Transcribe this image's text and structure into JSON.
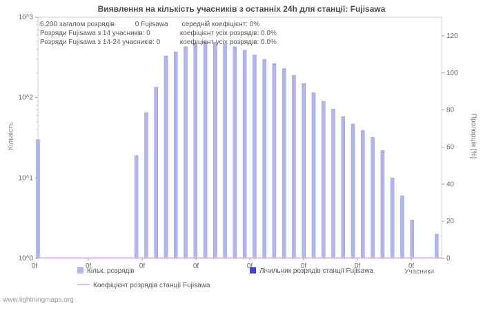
{
  "title": "Виявлення на кількість учасників з останніх 24h для станції: Fujisawa",
  "stats": {
    "line1": [
      "6,200 загалом розрядів",
      "0 Fujisawa",
      "середній коефіцієнт: 0%"
    ],
    "line2": [
      "Розряди Fujisawa з 14 учасників: 0",
      "коефіцієнт усіх розрядів: 0.0%"
    ],
    "line3": [
      "Розряди Fujisawa з 14-24 учасників: 0",
      "коефіцієнт усіх розрядів: 0.0%"
    ]
  },
  "axes": {
    "xlabel": "Учасники",
    "ylabel_left": "Кількість",
    "ylabel_right": "Пропорція [%]"
  },
  "legend": {
    "items": [
      {
        "label": "Кільк. розрядів",
        "color": "#b3b3f0",
        "swatch": "square"
      },
      {
        "label": "Лічильник розрядів станції Fujisawa",
        "color": "#4444cc",
        "swatch": "square"
      },
      {
        "label": "Коефіцієнт розрядів станції Fujisawa",
        "color": "#f0b4ee",
        "swatch": "line"
      }
    ]
  },
  "watermark": "www.lightningmaps.org",
  "chart_data": {
    "type": "bar",
    "title": "Виявлення на кількість учасників з останніх 24h для станції: Fujisawa",
    "xlabel": "Учасники",
    "ylabel": "Кількість",
    "ylabel_right": "Пропорція [%]",
    "y_scale": "log",
    "ylim": [
      1,
      1000
    ],
    "ylim_right": [
      0,
      130
    ],
    "grid": false,
    "legend_position": "bottom",
    "left_ticks": [
      "10^0",
      "10^1",
      "10^2",
      "10^3"
    ],
    "right_ticks": [
      0,
      20,
      40,
      60,
      80,
      100,
      120
    ],
    "x_tick_labels": [
      "0f",
      "0f",
      "0f",
      "0f",
      "0f",
      "0f",
      "0f",
      "0f"
    ],
    "x_range": [
      0,
      41
    ],
    "series": [
      {
        "name": "Кільк. розрядів",
        "color": "#b3b3f0",
        "kind": "bar",
        "points": [
          [
            0,
            30
          ],
          [
            10,
            19
          ],
          [
            11,
            65
          ],
          [
            12,
            135
          ],
          [
            13,
            330
          ],
          [
            14,
            370
          ],
          [
            15,
            430
          ],
          [
            16,
            480
          ],
          [
            17,
            500
          ],
          [
            18,
            490
          ],
          [
            19,
            460
          ],
          [
            20,
            430
          ],
          [
            21,
            390
          ],
          [
            22,
            340
          ],
          [
            23,
            300
          ],
          [
            24,
            265
          ],
          [
            25,
            230
          ],
          [
            26,
            190
          ],
          [
            27,
            150
          ],
          [
            28,
            115
          ],
          [
            29,
            90
          ],
          [
            30,
            72
          ],
          [
            31,
            58
          ],
          [
            32,
            47
          ],
          [
            33,
            39
          ],
          [
            34,
            32
          ],
          [
            35,
            22
          ],
          [
            36,
            10
          ],
          [
            37,
            6
          ],
          [
            38,
            3
          ],
          [
            40.5,
            2
          ]
        ]
      },
      {
        "name": "Лічильник розрядів станції Fujisawa",
        "color": "#4444cc",
        "kind": "bar",
        "points": []
      },
      {
        "name": "Коефіцієнт розрядів станції Fujisawa",
        "color": "#f0b4ee",
        "kind": "line",
        "value_percent": 0
      }
    ]
  }
}
